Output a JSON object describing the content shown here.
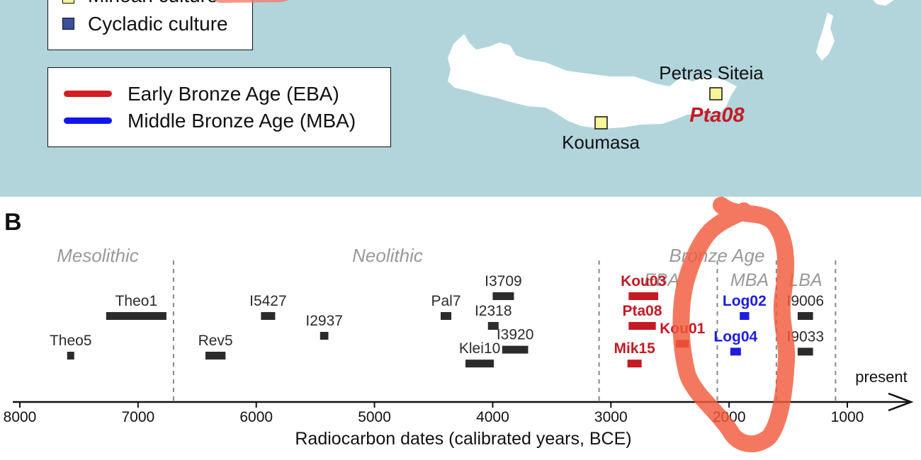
{
  "map_panel": {
    "culture_legend": [
      {
        "label": "Minoan culture",
        "color": "#f7f59a"
      },
      {
        "label": "Cycladic culture",
        "color": "#3a4f9a"
      }
    ],
    "period_legend": [
      {
        "label": "Early Bronze Age (EBA)",
        "color": "#d11f24"
      },
      {
        "label": "Middle Bronze Age (MBA)",
        "color": "#1414f0"
      }
    ],
    "sites": [
      {
        "name": "Petras Siteia",
        "sample": "Pta08",
        "sample_color": "#c41a23"
      },
      {
        "name": "Koumasa",
        "sample": ""
      }
    ],
    "colors": {
      "sea": "#b2d5dc",
      "land": "#ffffff",
      "minoan_site": "#f7f59a",
      "annotation": "#f25a3c"
    }
  },
  "timeline_panel": {
    "panel_label": "B",
    "periods": [
      {
        "label": "Mesolithic",
        "level": "main"
      },
      {
        "label": "Neolithic",
        "level": "main"
      },
      {
        "label": "Bronze Age",
        "level": "main"
      },
      {
        "label": "EBA",
        "level": "sub"
      },
      {
        "label": "MBA",
        "level": "sub"
      },
      {
        "label": "LBA",
        "level": "sub"
      }
    ],
    "present_label": "present",
    "colors": {
      "neutral": "#2b2b2b",
      "eba": "#c41a23",
      "mba": "#1c1ce0",
      "period_text": "#999999",
      "divider": "#888888"
    }
  },
  "chart_data": {
    "type": "timeline",
    "xlabel": "Radiocarbon dates (calibrated years, BCE)",
    "x_axis": {
      "min": 8000,
      "max": 1000,
      "reversed": true,
      "ticks": [
        8000,
        7000,
        6000,
        5000,
        4000,
        3000,
        2000,
        1000
      ]
    },
    "period_boundaries_bce": [
      6700,
      3100,
      2100,
      1600,
      1100
    ],
    "samples": [
      {
        "name": "Theo5",
        "start": 7600,
        "end": 7540,
        "row": 1,
        "group": "neutral"
      },
      {
        "name": "Theo1",
        "start": 7270,
        "end": 6760,
        "row": 3,
        "group": "neutral"
      },
      {
        "name": "Rev5",
        "start": 6430,
        "end": 6260,
        "row": 1,
        "group": "neutral"
      },
      {
        "name": "I5427",
        "start": 5960,
        "end": 5840,
        "row": 3,
        "group": "neutral"
      },
      {
        "name": "I2937",
        "start": 5460,
        "end": 5390,
        "row": 2,
        "group": "neutral"
      },
      {
        "name": "Pal7",
        "start": 4440,
        "end": 4350,
        "row": 3,
        "group": "neutral"
      },
      {
        "name": "I3709",
        "start": 4000,
        "end": 3820,
        "row": 4,
        "group": "neutral"
      },
      {
        "name": "I2318",
        "start": 4040,
        "end": 3950,
        "row": 2.5,
        "group": "neutral"
      },
      {
        "name": "I3920",
        "start": 3920,
        "end": 3700,
        "row": 1.3,
        "group": "neutral"
      },
      {
        "name": "Klei10",
        "start": 4230,
        "end": 3990,
        "row": 0.6,
        "group": "neutral"
      },
      {
        "name": "Kou03",
        "start": 2850,
        "end": 2600,
        "row": 4,
        "group": "eba"
      },
      {
        "name": "Pta08",
        "start": 2850,
        "end": 2620,
        "row": 2.5,
        "group": "eba"
      },
      {
        "name": "Kou01",
        "start": 2450,
        "end": 2340,
        "row": 1.6,
        "group": "eba"
      },
      {
        "name": "Mik15",
        "start": 2860,
        "end": 2740,
        "row": 0.6,
        "group": "eba"
      },
      {
        "name": "Log02",
        "start": 1910,
        "end": 1830,
        "row": 3,
        "group": "mba"
      },
      {
        "name": "Log04",
        "start": 1990,
        "end": 1900,
        "row": 1.2,
        "group": "mba"
      },
      {
        "name": "I9006",
        "start": 1420,
        "end": 1290,
        "row": 3,
        "group": "neutral"
      },
      {
        "name": "I9033",
        "start": 1420,
        "end": 1290,
        "row": 1.2,
        "group": "neutral"
      }
    ]
  }
}
